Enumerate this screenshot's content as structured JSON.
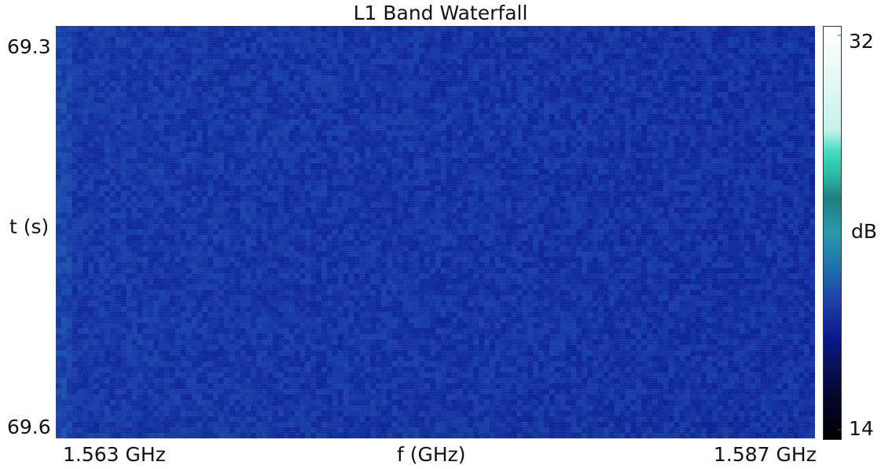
{
  "chart_data": {
    "type": "heatmap",
    "title": "L1 Band Waterfall",
    "xlabel": "f (GHz)",
    "ylabel": "t (s)",
    "x_tick_labels": [
      "1.563 GHz",
      "1.587 GHz"
    ],
    "y_tick_labels": [
      "69.3",
      "69.6"
    ],
    "xlim_ghz": [
      1.563,
      1.587
    ],
    "ylim_s": [
      69.3,
      69.6
    ],
    "y_direction": "time increases downward",
    "colorbar": {
      "label": "dB",
      "tick_labels": [
        "32",
        "14"
      ],
      "range_db": [
        14,
        32
      ],
      "colormap_stops": [
        {
          "db": 14,
          "color": "#000000"
        },
        {
          "db": 16,
          "color": "#05082e"
        },
        {
          "db": 18.5,
          "color": "#0a1a8c"
        },
        {
          "db": 20,
          "color": "#1b40a8"
        },
        {
          "db": 21.5,
          "color": "#1f70ad"
        },
        {
          "db": 23,
          "color": "#2a9aae"
        },
        {
          "db": 24.5,
          "color": "#1f7f80"
        },
        {
          "db": 25.5,
          "color": "#2ab9a5"
        },
        {
          "db": 26.5,
          "color": "#3fdcc0"
        },
        {
          "db": 27.5,
          "color": "#c7f2ea"
        },
        {
          "db": 32,
          "color": "#ffffff"
        }
      ]
    },
    "observed_level_db": {
      "left_half": 19.5,
      "right_half": 19.2,
      "noise_spread": 0.6
    },
    "grid": false
  }
}
